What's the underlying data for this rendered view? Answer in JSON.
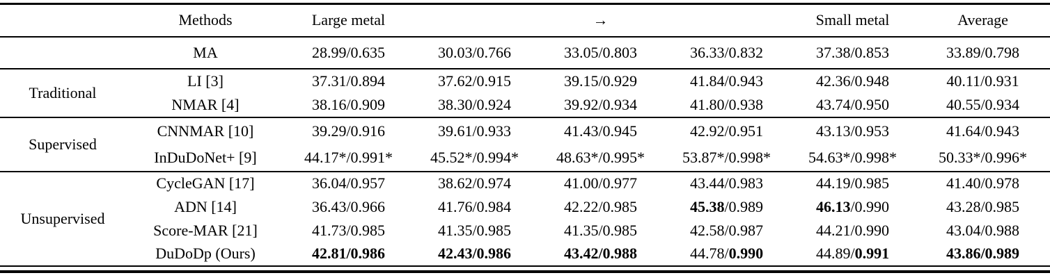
{
  "colors": {
    "background": "#ffffff",
    "text": "#000000",
    "rule": "#000000"
  },
  "table": {
    "header": {
      "group": "",
      "methods": "Methods",
      "cols": [
        "Large metal",
        "",
        "→",
        "",
        "Small metal",
        "Average"
      ]
    },
    "sections": [
      {
        "group": "",
        "rows": [
          {
            "method": "MA",
            "values": [
              "28.99/0.635",
              "30.03/0.766",
              "33.05/0.803",
              "36.33/0.832",
              "37.38/0.853",
              "33.89/0.798"
            ]
          }
        ]
      },
      {
        "group": "Traditional",
        "rows": [
          {
            "method": "LI [3]",
            "values": [
              "37.31/0.894",
              "37.62/0.915",
              "39.15/0.929",
              "41.84/0.943",
              "42.36/0.948",
              "40.11/0.931"
            ]
          },
          {
            "method": "NMAR [4]",
            "values": [
              "38.16/0.909",
              "38.30/0.924",
              "39.92/0.934",
              "41.80/0.938",
              "43.74/0.950",
              "40.55/0.934"
            ]
          }
        ]
      },
      {
        "group": "Supervised",
        "rows": [
          {
            "method": "CNNMAR [10]",
            "values": [
              "39.29/0.916",
              "39.61/0.933",
              "41.43/0.945",
              "42.92/0.951",
              "43.13/0.953",
              "41.64/0.943"
            ]
          },
          {
            "method": "InDuDoNet+ [9]",
            "values": [
              "44.17*/0.991*",
              "45.52*/0.994*",
              "48.63*/0.995*",
              "53.87*/0.998*",
              "54.63*/0.998*",
              "50.33*/0.996*"
            ]
          }
        ]
      },
      {
        "group": "Unsupervised",
        "rows": [
          {
            "method": "CycleGAN [17]",
            "values": [
              "36.04/0.957",
              "38.62/0.974",
              "41.00/0.977",
              "43.44/0.983",
              "44.19/0.985",
              "41.40/0.978"
            ]
          },
          {
            "method": "ADN [14]",
            "values": [
              "36.43/0.966",
              "41.76/0.984",
              "42.22/0.985",
              "**45.38**/0.989",
              "**46.13**/0.990",
              "43.28/0.985"
            ]
          },
          {
            "method": "Score-MAR [21]",
            "values": [
              "41.73/0.985",
              "41.35/0.985",
              "41.35/0.985",
              "42.58/0.987",
              "44.21/0.990",
              "43.04/0.988"
            ]
          },
          {
            "method": "DuDoDp (Ours)",
            "values": [
              "**42.81/0.986**",
              "**42.43/0.986**",
              "**43.42/0.988**",
              "44.78/**0.990**",
              "44.89/**0.991**",
              "**43.86/0.989**"
            ]
          }
        ]
      }
    ]
  }
}
